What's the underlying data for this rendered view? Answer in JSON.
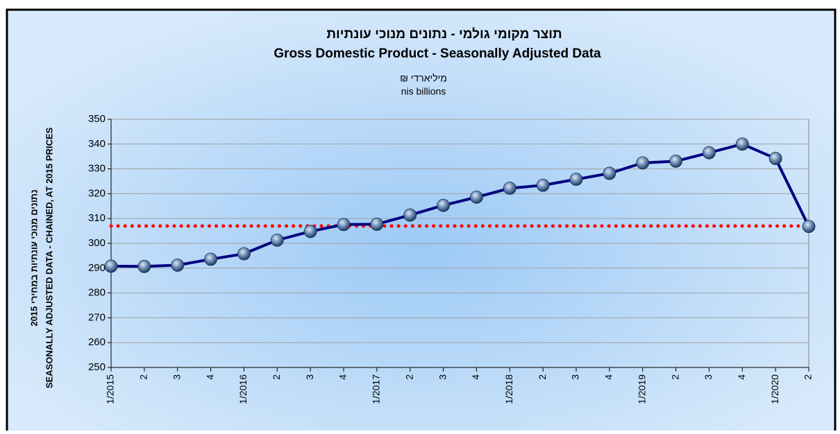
{
  "chart_data": {
    "type": "line",
    "title": "תוצר מקומי גולמי - נתונים מנוכי עונתיות",
    "title_en": "Gross Domestic Product - Seasonally Adjusted Data",
    "subtitle": "מיליארדי ₪",
    "subtitle_en": "nis billions",
    "ylabel": "נתונים מנוכי עונתיות במחירי 2015",
    "ylabel_en": "SEASONALLY ADJUSTED DATA - CHAINED, AT 2015 PRICES",
    "categories": [
      "1/2015",
      "2",
      "3",
      "4",
      "1/2016",
      "2",
      "3",
      "4",
      "1/2017",
      "2",
      "3",
      "4",
      "1/2018",
      "2",
      "3",
      "4",
      "1/2019",
      "2",
      "3",
      "4",
      "1/2020",
      "2"
    ],
    "values": [
      290.8,
      290.7,
      291.2,
      293.6,
      295.8,
      301.3,
      304.8,
      307.6,
      307.7,
      311.4,
      315.3,
      318.6,
      322.2,
      323.4,
      325.8,
      328.2,
      332.4,
      333.1,
      336.5,
      340.0,
      334.2,
      306.8
    ],
    "color": "#000080",
    "reference_line": 307,
    "reference_color": "#ff0000",
    "ylim": [
      250,
      350
    ],
    "yticks": [
      250,
      260,
      270,
      280,
      290,
      300,
      310,
      320,
      330,
      340,
      350
    ],
    "grid": true
  }
}
